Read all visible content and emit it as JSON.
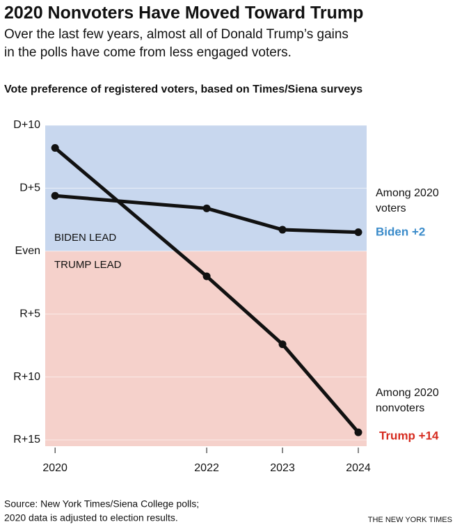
{
  "chart_data": {
    "type": "line",
    "title": "2020 Nonvoters Have Moved Toward Trump",
    "subtitle": [
      "Over the last few years, almost all of Donald Trump’s gains",
      "in the polls have come from less engaged voters."
    ],
    "heading": "Vote preference of registered voters, based on Times/Siena surveys",
    "x": [
      2020,
      2022,
      2023,
      2024
    ],
    "xlim": [
      2019.87,
      2024.11
    ],
    "xticks": [
      2020,
      2022,
      2023,
      2024
    ],
    "ylim": [
      -15.5,
      10
    ],
    "yticks": [
      {
        "value": 10,
        "label": "D+10"
      },
      {
        "value": 5,
        "label": "D+5"
      },
      {
        "value": 0,
        "label": "Even"
      },
      {
        "value": -5,
        "label": "R+5"
      },
      {
        "value": -10,
        "label": "R+10"
      },
      {
        "value": -15,
        "label": "R+15"
      }
    ],
    "regions": [
      {
        "label": "BIDEN LEAD",
        "color": "#c8d7ee"
      },
      {
        "label": "TRUMP LEAD",
        "color": "#f5d1cb"
      }
    ],
    "series": [
      {
        "name": "Among 2020 voters",
        "color": "#111111",
        "values": [
          4.4,
          3.4,
          1.7,
          1.5
        ],
        "end_label": "Biden +2",
        "end_label_color": "#3a8bca"
      },
      {
        "name": "Among 2020 nonvoters",
        "color": "#111111",
        "values": [
          8.2,
          -2.0,
          -7.4,
          -14.4
        ],
        "end_label": "Trump +14",
        "end_label_color": "#d62b1f"
      }
    ],
    "source": [
      "Source: New York Times/Siena College polls;",
      "2020 data is adjusted to election results."
    ],
    "credit": "THE NEW YORK TIMES"
  }
}
